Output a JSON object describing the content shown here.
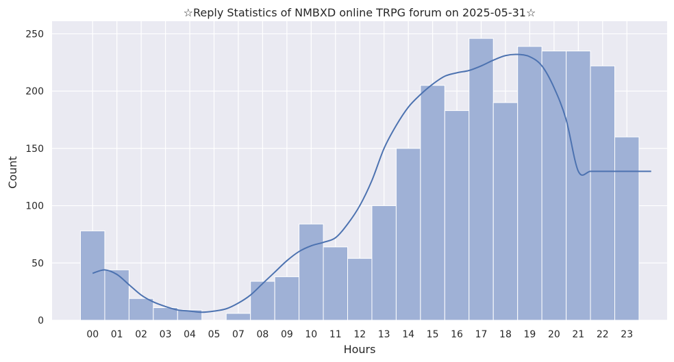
{
  "chart_data": {
    "type": "bar",
    "title": "☆Reply Statistics of NMBXD online TRPG forum on 2025-05-31☆",
    "xlabel": "Hours",
    "ylabel": "Count",
    "categories": [
      "00",
      "01",
      "02",
      "03",
      "04",
      "05",
      "07",
      "08",
      "09",
      "10",
      "11",
      "12",
      "13",
      "14",
      "15",
      "16",
      "17",
      "18",
      "19",
      "20",
      "21",
      "22",
      "23"
    ],
    "values": [
      78,
      44,
      19,
      11,
      9,
      0,
      6,
      34,
      38,
      84,
      64,
      54,
      100,
      150,
      205,
      183,
      246,
      190,
      239,
      235,
      235,
      222,
      160
    ],
    "yticks": [
      0,
      50,
      100,
      150,
      200,
      250
    ],
    "ylim": [
      0,
      261
    ],
    "grid": true,
    "kde": {
      "name": "kde",
      "x": [
        0,
        0.5,
        1,
        1.5,
        2,
        2.5,
        3,
        3.5,
        4,
        4.5,
        5,
        5.5,
        6,
        6.5,
        7,
        7.5,
        8,
        8.5,
        9,
        9.5,
        10,
        10.5,
        11,
        11.5,
        12,
        12.5,
        13,
        13.5,
        14,
        14.5,
        15,
        15.5,
        16,
        16.5,
        17,
        17.5,
        18,
        18.5,
        19,
        19.5,
        20,
        20.5,
        21,
        21.5,
        22,
        22.5,
        23
      ],
      "y": [
        41,
        44,
        40,
        31,
        22,
        16,
        12,
        9,
        8,
        7,
        8,
        10,
        15,
        22,
        32,
        42,
        52,
        60,
        65,
        68,
        72,
        84,
        100,
        122,
        150,
        170,
        186,
        197,
        206,
        213,
        216,
        218,
        222,
        227,
        231,
        232,
        230,
        222,
        203,
        175,
        130,
        130,
        130,
        130,
        130,
        130,
        130
      ],
      "color": "#4c72b0"
    },
    "colors": {
      "background": "#eaeaf2",
      "grid": "#ffffff",
      "bar_fill": "#9fb1d6",
      "bar_edge": "#ffffff",
      "line": "#4c72b0"
    }
  }
}
